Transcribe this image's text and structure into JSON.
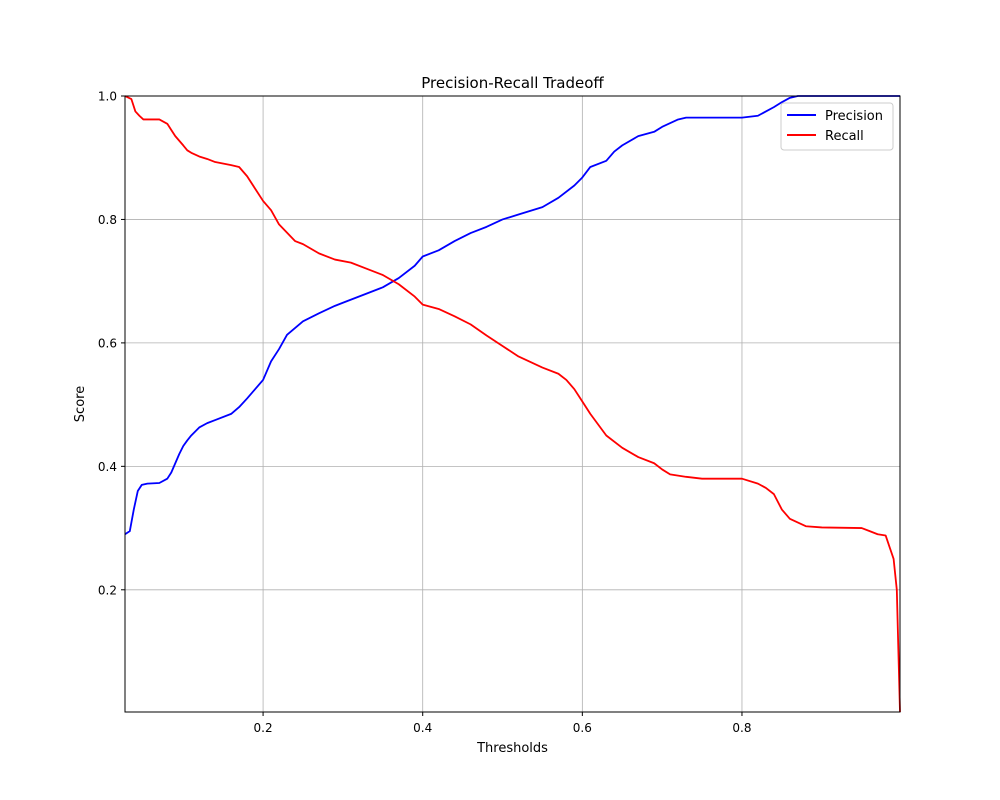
{
  "chart_data": {
    "type": "line",
    "title": "Precision-Recall Tradeoff",
    "xlabel": "Thresholds",
    "ylabel": "Score",
    "xlim": [
      0.027,
      0.998
    ],
    "ylim": [
      0.002,
      1.0
    ],
    "xticks": [
      0.2,
      0.4,
      0.6,
      0.8
    ],
    "xtick_labels": [
      "0.2",
      "0.4",
      "0.6",
      "0.8"
    ],
    "yticks": [
      0.2,
      0.4,
      0.6,
      0.8,
      1.0
    ],
    "ytick_labels": [
      "0.2",
      "0.4",
      "0.6",
      "0.8",
      "1.0"
    ],
    "grid": true,
    "legend_position": "top-right",
    "series": [
      {
        "name": "Precision",
        "color": "#0000ff",
        "x": [
          0.027,
          0.033,
          0.038,
          0.043,
          0.048,
          0.055,
          0.07,
          0.08,
          0.085,
          0.09,
          0.095,
          0.1,
          0.105,
          0.11,
          0.12,
          0.13,
          0.14,
          0.16,
          0.17,
          0.18,
          0.19,
          0.2,
          0.21,
          0.22,
          0.23,
          0.25,
          0.27,
          0.29,
          0.3,
          0.33,
          0.35,
          0.37,
          0.39,
          0.4,
          0.42,
          0.44,
          0.46,
          0.48,
          0.5,
          0.52,
          0.55,
          0.57,
          0.59,
          0.6,
          0.61,
          0.63,
          0.64,
          0.65,
          0.67,
          0.69,
          0.7,
          0.72,
          0.73,
          0.75,
          0.8,
          0.82,
          0.83,
          0.84,
          0.85,
          0.86,
          0.87,
          0.998
        ],
        "y": [
          0.29,
          0.295,
          0.33,
          0.36,
          0.37,
          0.372,
          0.373,
          0.38,
          0.39,
          0.405,
          0.42,
          0.433,
          0.442,
          0.45,
          0.463,
          0.47,
          0.475,
          0.485,
          0.496,
          0.51,
          0.525,
          0.54,
          0.57,
          0.59,
          0.613,
          0.635,
          0.648,
          0.66,
          0.665,
          0.68,
          0.69,
          0.705,
          0.725,
          0.74,
          0.75,
          0.765,
          0.778,
          0.788,
          0.8,
          0.808,
          0.82,
          0.835,
          0.855,
          0.868,
          0.885,
          0.895,
          0.91,
          0.92,
          0.935,
          0.942,
          0.95,
          0.962,
          0.965,
          0.965,
          0.965,
          0.968,
          0.975,
          0.982,
          0.99,
          0.997,
          1.0,
          1.0
        ]
      },
      {
        "name": "Recall",
        "color": "#ff0000",
        "x": [
          0.027,
          0.035,
          0.04,
          0.045,
          0.05,
          0.055,
          0.07,
          0.08,
          0.085,
          0.09,
          0.1,
          0.105,
          0.11,
          0.12,
          0.13,
          0.14,
          0.16,
          0.17,
          0.18,
          0.19,
          0.2,
          0.21,
          0.22,
          0.24,
          0.25,
          0.27,
          0.29,
          0.31,
          0.33,
          0.35,
          0.37,
          0.39,
          0.4,
          0.42,
          0.44,
          0.46,
          0.48,
          0.5,
          0.52,
          0.55,
          0.57,
          0.58,
          0.59,
          0.6,
          0.61,
          0.63,
          0.65,
          0.67,
          0.69,
          0.7,
          0.71,
          0.73,
          0.75,
          0.8,
          0.82,
          0.83,
          0.84,
          0.85,
          0.86,
          0.88,
          0.9,
          0.95,
          0.96,
          0.97,
          0.98,
          0.99,
          0.994,
          0.996,
          0.998
        ],
        "y": [
          1.0,
          0.995,
          0.975,
          0.968,
          0.962,
          0.962,
          0.962,
          0.955,
          0.945,
          0.935,
          0.92,
          0.912,
          0.908,
          0.902,
          0.898,
          0.893,
          0.888,
          0.885,
          0.87,
          0.85,
          0.83,
          0.815,
          0.792,
          0.765,
          0.76,
          0.745,
          0.735,
          0.73,
          0.72,
          0.71,
          0.695,
          0.675,
          0.662,
          0.655,
          0.643,
          0.63,
          0.612,
          0.595,
          0.578,
          0.56,
          0.55,
          0.54,
          0.525,
          0.505,
          0.485,
          0.45,
          0.43,
          0.415,
          0.405,
          0.395,
          0.387,
          0.383,
          0.38,
          0.38,
          0.372,
          0.365,
          0.355,
          0.33,
          0.315,
          0.303,
          0.301,
          0.3,
          0.295,
          0.29,
          0.288,
          0.25,
          0.2,
          0.1,
          0.002
        ]
      }
    ]
  }
}
